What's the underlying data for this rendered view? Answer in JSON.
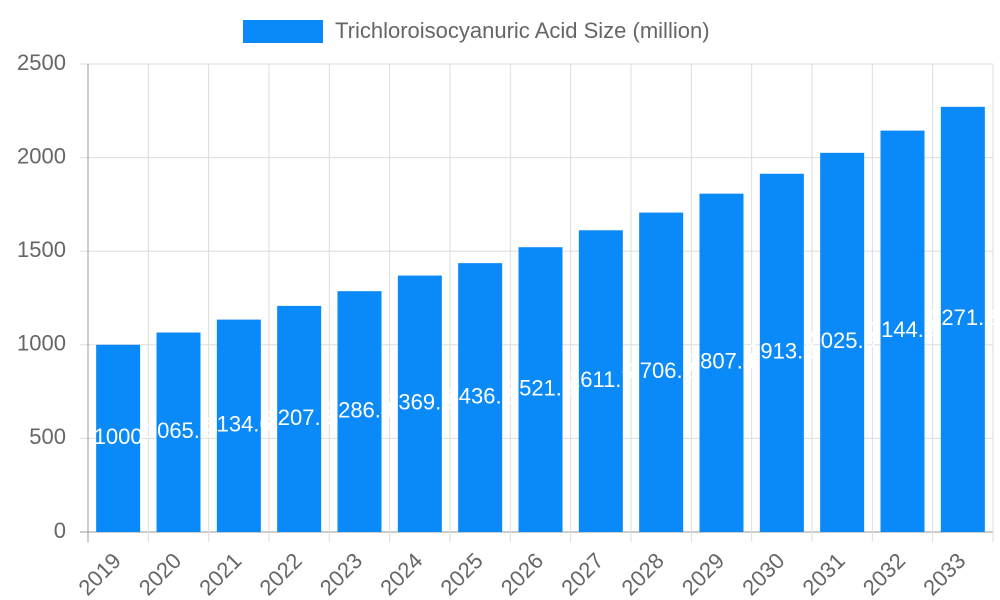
{
  "chart_data": {
    "type": "bar",
    "categories": [
      "2019",
      "2020",
      "2021",
      "2022",
      "2023",
      "2024",
      "2025",
      "2026",
      "2027",
      "2028",
      "2029",
      "2030",
      "2031",
      "2032",
      "2033"
    ],
    "series": [
      {
        "name": "Trichloroisocyanuric Acid Size (million)",
        "color": "#0a8af8",
        "values": [
          1000,
          1065.5,
          1134.6,
          1207.9,
          1286.4,
          1369.8,
          1436.2,
          1521.3,
          1611.7,
          1706.2,
          1807.4,
          1913.6,
          2025.5,
          2144.3,
          2271.2
        ]
      }
    ],
    "ylim": [
      0,
      2500
    ],
    "yticks": [
      0,
      500,
      1000,
      1500,
      2000,
      2500
    ],
    "grid": true,
    "legend": "top"
  }
}
